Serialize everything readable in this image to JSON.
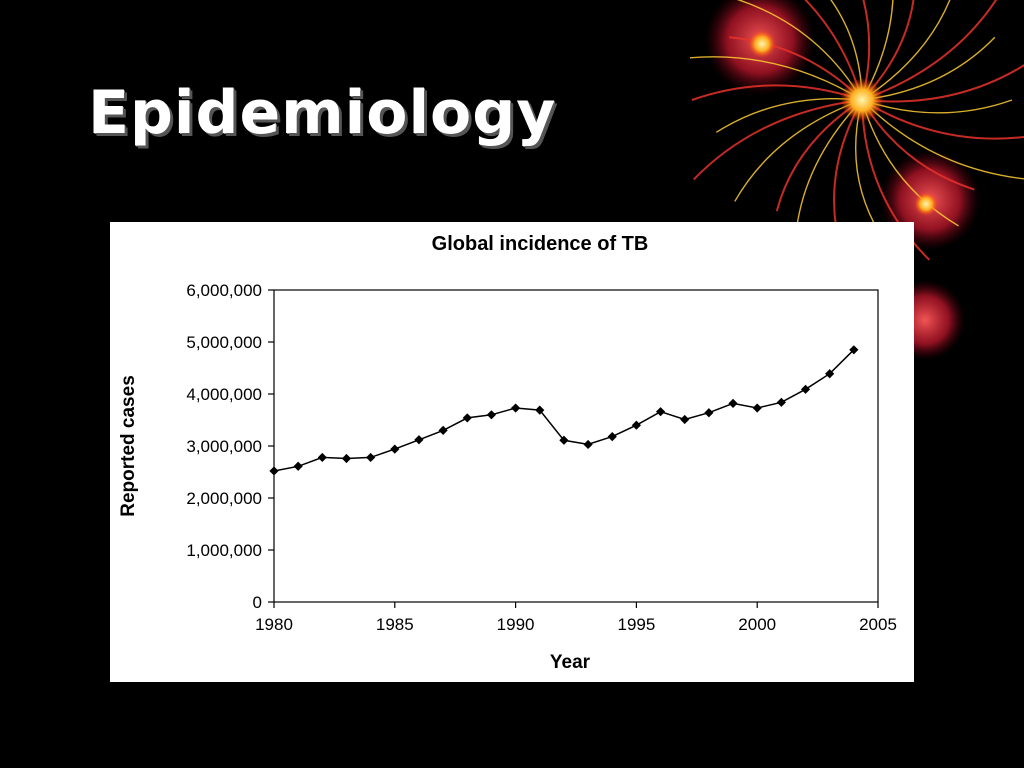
{
  "slide": {
    "title": "Epidemiology"
  },
  "colors": {
    "background": "#000000",
    "plot_line": "#000000",
    "decor_red": "#e8332a",
    "decor_yellow": "#ffcc33"
  },
  "chart_data": {
    "type": "line",
    "title": "Global incidence of TB",
    "xlabel": "Year",
    "ylabel": "Reported cases",
    "xlim": [
      1980,
      2005
    ],
    "ylim": [
      0,
      6000000
    ],
    "x_ticks": [
      1980,
      1985,
      1990,
      1995,
      2000,
      2005
    ],
    "y_ticks": [
      0,
      1000000,
      2000000,
      3000000,
      4000000,
      5000000,
      6000000
    ],
    "y_tick_labels": [
      "0",
      "1,000,000",
      "2,000,000",
      "3,000,000",
      "4,000,000",
      "5,000,000",
      "6,000,000"
    ],
    "grid": false,
    "legend": "none",
    "marker": "diamond",
    "series": [
      {
        "x": [
          1980,
          1981,
          1982,
          1983,
          1984,
          1985,
          1986,
          1987,
          1988,
          1989,
          1990,
          1991,
          1992,
          1993,
          1994,
          1995,
          1996,
          1997,
          1998,
          1999,
          2000,
          2001,
          2002,
          2003,
          2004
        ],
        "values": [
          2520000,
          2610000,
          2780000,
          2760000,
          2780000,
          2940000,
          3120000,
          3300000,
          3540000,
          3600000,
          3730000,
          3690000,
          3110000,
          3030000,
          3180000,
          3400000,
          3660000,
          3510000,
          3640000,
          3820000,
          3730000,
          3840000,
          4090000,
          4390000,
          4850000
        ]
      }
    ]
  }
}
